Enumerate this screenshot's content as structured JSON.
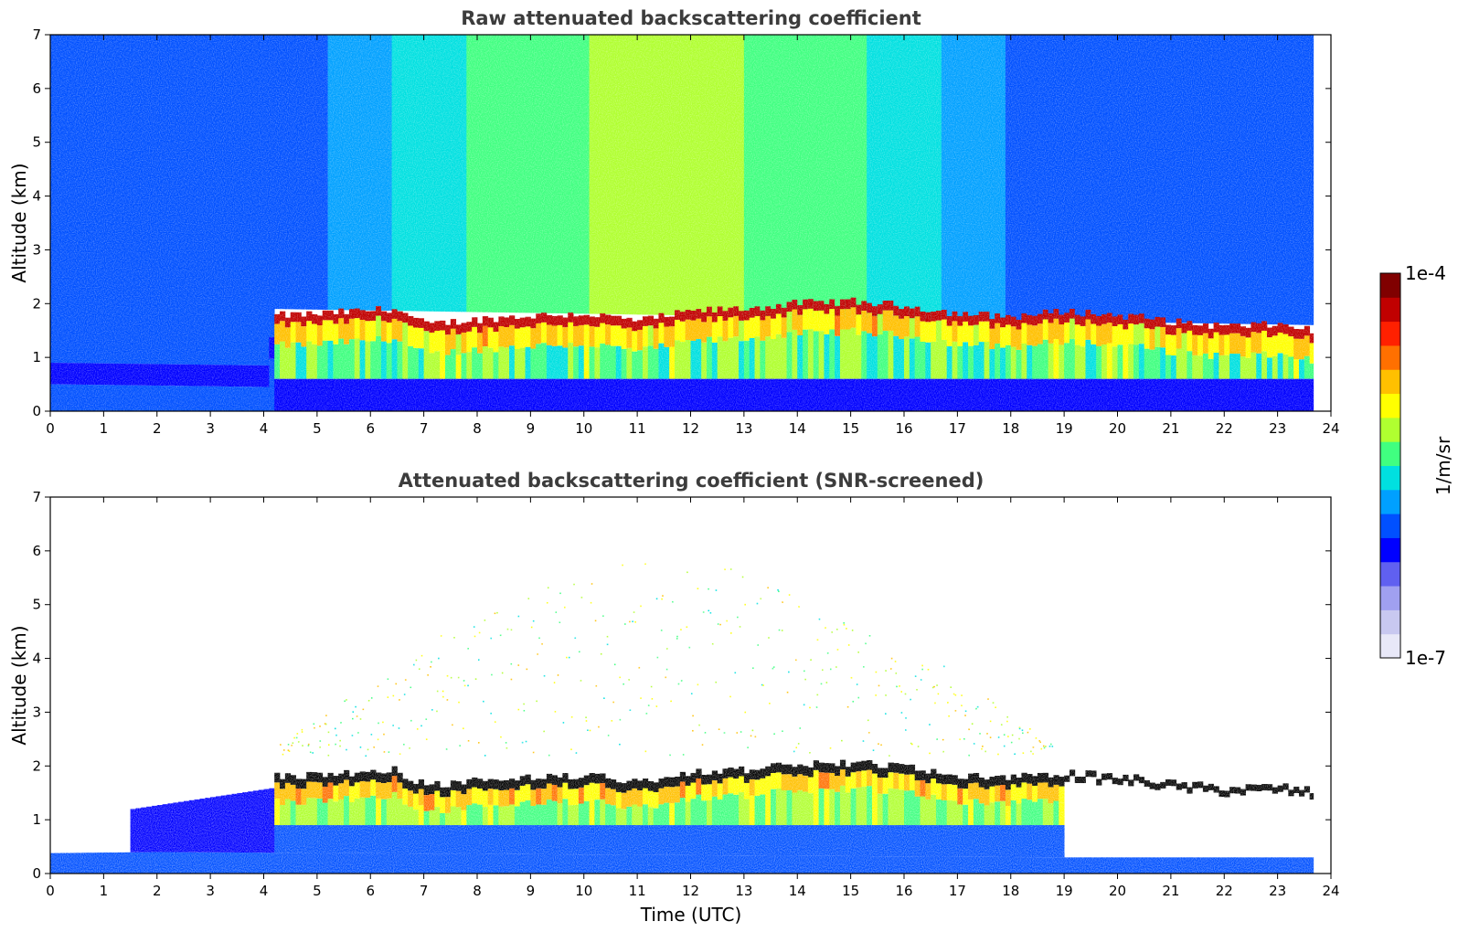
{
  "chart_data": [
    {
      "type": "heatmap",
      "title": "Raw attenuated backscattering coefficient",
      "xlabel": "",
      "ylabel": "Altitude (km)",
      "xlim": [
        0,
        24
      ],
      "ylim": [
        0,
        7
      ],
      "xticks": [
        "0",
        "1",
        "2",
        "3",
        "4",
        "5",
        "6",
        "7",
        "8",
        "9",
        "10",
        "11",
        "12",
        "13",
        "14",
        "15",
        "16",
        "17",
        "18",
        "19",
        "20",
        "21",
        "22",
        "23",
        "24"
      ],
      "yticks": [
        "0",
        "1",
        "2",
        "3",
        "4",
        "5",
        "6",
        "7"
      ],
      "data_extent_hours": [
        0,
        23.67
      ],
      "cloud_base_km": [
        {
          "t": 4.2,
          "z": 1.72
        },
        {
          "t": 5,
          "z": 1.75
        },
        {
          "t": 6,
          "z": 1.82
        },
        {
          "t": 6.4,
          "z": 1.85
        },
        {
          "t": 7,
          "z": 1.55
        },
        {
          "t": 8,
          "z": 1.65
        },
        {
          "t": 9,
          "z": 1.72
        },
        {
          "t": 10,
          "z": 1.75
        },
        {
          "t": 11,
          "z": 1.62
        },
        {
          "t": 12,
          "z": 1.8
        },
        {
          "t": 13,
          "z": 1.85
        },
        {
          "t": 14,
          "z": 1.95
        },
        {
          "t": 15,
          "z": 1.98
        },
        {
          "t": 16,
          "z": 1.9
        },
        {
          "t": 17,
          "z": 1.75
        },
        {
          "t": 18,
          "z": 1.7
        },
        {
          "t": 19,
          "z": 1.8
        },
        {
          "t": 20,
          "z": 1.72
        },
        {
          "t": 20.5,
          "z": 1.68
        },
        {
          "t": 21,
          "z": 1.6
        },
        {
          "t": 22,
          "z": 1.52
        },
        {
          "t": 23,
          "z": 1.55
        },
        {
          "t": 23.67,
          "z": 1.45
        }
      ],
      "boundary_layer_top_km": [
        {
          "t": 0,
          "z": 0.7
        },
        {
          "t": 4,
          "z": 0.65
        },
        {
          "t": 4.2,
          "z": 1.7
        },
        {
          "t": 23.67,
          "z": 1.4
        }
      ]
    },
    {
      "type": "heatmap",
      "title": "Attenuated backscattering coefficient (SNR-screened)",
      "xlabel": "Time (UTC)",
      "ylabel": "Altitude (km)",
      "xlim": [
        0,
        24
      ],
      "ylim": [
        0,
        7
      ],
      "xticks": [
        "0",
        "1",
        "2",
        "3",
        "4",
        "5",
        "6",
        "7",
        "8",
        "9",
        "10",
        "11",
        "12",
        "13",
        "14",
        "15",
        "16",
        "17",
        "18",
        "19",
        "20",
        "21",
        "22",
        "23",
        "24"
      ],
      "yticks": [
        "0",
        "1",
        "2",
        "3",
        "4",
        "5",
        "6",
        "7"
      ],
      "data_extent_hours": [
        0,
        23.67
      ],
      "cloud_base_km": [
        {
          "t": 4.2,
          "z": 1.72
        },
        {
          "t": 5,
          "z": 1.75
        },
        {
          "t": 6,
          "z": 1.82
        },
        {
          "t": 6.4,
          "z": 1.85
        },
        {
          "t": 7,
          "z": 1.55
        },
        {
          "t": 8,
          "z": 1.65
        },
        {
          "t": 9,
          "z": 1.72
        },
        {
          "t": 10,
          "z": 1.75
        },
        {
          "t": 11,
          "z": 1.62
        },
        {
          "t": 12,
          "z": 1.8
        },
        {
          "t": 13,
          "z": 1.85
        },
        {
          "t": 14,
          "z": 1.95
        },
        {
          "t": 15,
          "z": 1.98
        },
        {
          "t": 16,
          "z": 1.9
        },
        {
          "t": 17,
          "z": 1.75
        },
        {
          "t": 18,
          "z": 1.7
        },
        {
          "t": 19,
          "z": 1.8
        },
        {
          "t": 20,
          "z": 1.72
        },
        {
          "t": 20.5,
          "z": 1.68
        },
        {
          "t": 21,
          "z": 1.6
        },
        {
          "t": 22,
          "z": 1.52
        },
        {
          "t": 23,
          "z": 1.55
        },
        {
          "t": 23.67,
          "z": 1.45
        }
      ],
      "surface_layer_top_km": [
        {
          "t": 0,
          "z": 0.38
        },
        {
          "t": 2,
          "z": 0.4
        },
        {
          "t": 19,
          "z": 0.3
        },
        {
          "t": 23.67,
          "z": 0.3
        }
      ]
    }
  ],
  "colorbar": {
    "label": "1/m/sr",
    "min_label": "1e-7",
    "max_label": "1e-4",
    "scale": "log",
    "range": [
      1e-07,
      0.0001
    ],
    "colors": [
      "#e8e8f8",
      "#c8c8f0",
      "#a0a0f0",
      "#6060f0",
      "#0000ff",
      "#0050ff",
      "#00a0ff",
      "#00e0e0",
      "#40ff80",
      "#b0ff30",
      "#ffff00",
      "#ffc000",
      "#ff7000",
      "#ff2000",
      "#c00000",
      "#800000"
    ]
  }
}
